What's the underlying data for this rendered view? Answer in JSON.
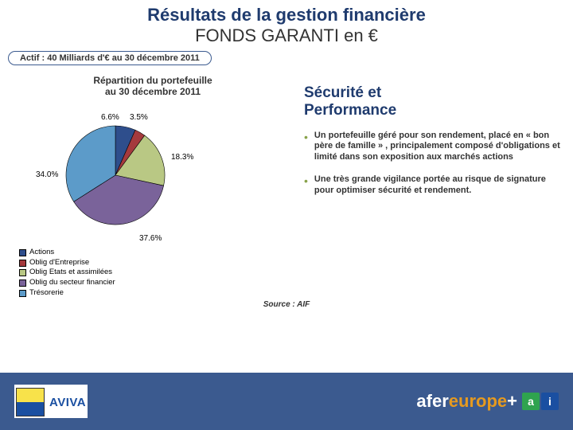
{
  "title": {
    "line1": "Résultats de la gestion financière",
    "line2": "FONDS GARANTI en €"
  },
  "actif_bar": "Actif : 40 Milliards d'€ au 30 décembre 2011",
  "chart": {
    "title_line1": "Répartition du portefeuille",
    "title_line2": "au 30 décembre 2011",
    "type": "pie",
    "background_color": "#ffffff",
    "stroke_color": "#000000",
    "label_fontsize": 10,
    "slices": [
      {
        "name": "Actions",
        "value": 6.6,
        "label": "6.6%",
        "color": "#2e4e8c"
      },
      {
        "name": "Oblig d'Entreprise",
        "value": 3.5,
        "label": "3.5%",
        "color": "#a53a3d"
      },
      {
        "name": "Oblig Etats et assimilées",
        "value": 18.3,
        "label": "18.3%",
        "color": "#b9c884"
      },
      {
        "name": "Oblig du secteur financier",
        "value": 37.6,
        "label": "37.6%",
        "color": "#7a639a"
      },
      {
        "name": "Trésorerie",
        "value": 34.0,
        "label": "34.0%",
        "color": "#5c9bc9"
      }
    ],
    "legend_items": [
      {
        "label": "Actions",
        "color": "#2e4e8c"
      },
      {
        "label": "Oblig d'Entreprise",
        "color": "#a53a3d"
      },
      {
        "label": "Oblig Etats et assimilées",
        "color": "#b9c884"
      },
      {
        "label": "Oblig du secteur financier",
        "color": "#7a639a"
      },
      {
        "label": "Trésorerie",
        "color": "#5c9bc9"
      }
    ]
  },
  "right": {
    "heading1": "Sécurité et",
    "heading2": "Performance",
    "bullets": [
      "Un portefeuille géré pour son rendement, placé en « bon père de famille » , principalement composé d'obligations et limité dans son exposition aux marchés actions",
      "Une très grande vigilance portée au risque de signature pour optimiser sécurité et rendement."
    ]
  },
  "source": "Source : AIF",
  "brands": {
    "aviva": "AVIVA",
    "afer_prefix": "afer ",
    "afer_suffix": "europe",
    "plus": " + "
  },
  "colors": {
    "title": "#1f3b6e",
    "bar_bg": "#3b5a8f",
    "bullet": "#88a24a"
  }
}
